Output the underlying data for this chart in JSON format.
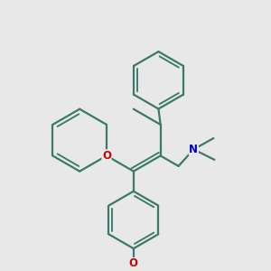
{
  "bg_color": "#e8e8e8",
  "bond_color": "#3a7a6a",
  "bond_width": 1.6,
  "atom_colors": {
    "O_ring": "#cc0000",
    "O_methoxy": "#cc0000",
    "N": "#0000cc"
  },
  "font_size_atom": 8.5,
  "fig_size": [
    3.0,
    3.0
  ],
  "dpi": 100
}
